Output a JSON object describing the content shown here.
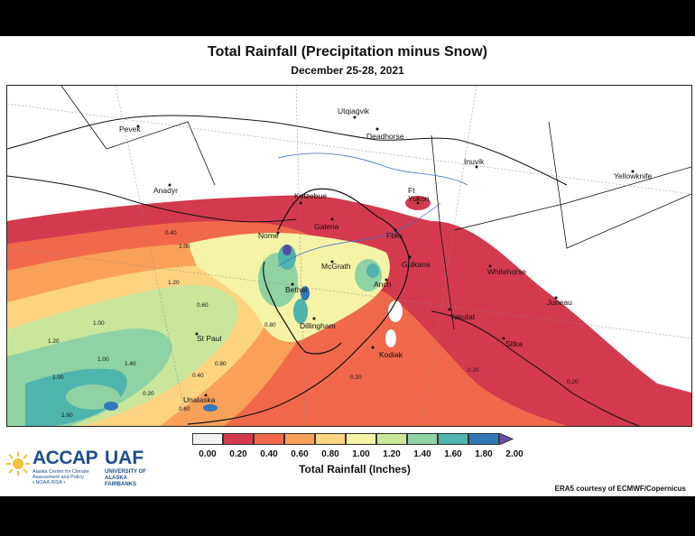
{
  "header": {
    "title": "Total Rainfall (Precipitation minus Snow)",
    "subtitle": "December 25-28, 2021"
  },
  "map": {
    "cities": [
      {
        "key": "pevek",
        "label": "Pevek"
      },
      {
        "key": "utqiagvik",
        "label": "Utqiaġvik"
      },
      {
        "key": "deadhorse",
        "label": "Deadhorse"
      },
      {
        "key": "inuvik",
        "label": "Inuvik"
      },
      {
        "key": "yellowknife",
        "label": "Yellowknife"
      },
      {
        "key": "anadyr",
        "label": "Anadyr"
      },
      {
        "key": "kotzebue",
        "label": "Kotzebue"
      },
      {
        "key": "ft-yukon",
        "label": "Ft\nYukon"
      },
      {
        "key": "galena",
        "label": "Galena"
      },
      {
        "key": "nome",
        "label": "Nome"
      },
      {
        "key": "fbks",
        "label": "Fbks"
      },
      {
        "key": "mcgrath",
        "label": "McGrath"
      },
      {
        "key": "gulkana",
        "label": "Gulkana"
      },
      {
        "key": "whitehorse",
        "label": "Whitehorse"
      },
      {
        "key": "bethel",
        "label": "Bethel"
      },
      {
        "key": "anch",
        "label": "Anch"
      },
      {
        "key": "juneau",
        "label": "Juneau"
      },
      {
        "key": "yakutat",
        "label": "Yakutat"
      },
      {
        "key": "dillingham",
        "label": "Dillingham"
      },
      {
        "key": "st-paul",
        "label": "St Paul"
      },
      {
        "key": "kodiak",
        "label": "Kodiak"
      },
      {
        "key": "sitka",
        "label": "Sitka"
      },
      {
        "key": "unalaska",
        "label": "Unalaska"
      }
    ],
    "contour_labels": [
      "0.40",
      "1.00",
      "1.20",
      "0.60",
      "1.00",
      "1.20",
      "1.00",
      "1.40",
      "0.20",
      "0.60",
      "0.40",
      "0.80",
      "0.20",
      "0.20",
      "0.20",
      "0.80",
      "1.60",
      "1.00"
    ]
  },
  "legend": {
    "title": "Total Rainfall (Inches)",
    "ticks": [
      "0.00",
      "0.20",
      "0.40",
      "0.60",
      "0.80",
      "1.00",
      "1.20",
      "1.40",
      "1.60",
      "1.80",
      "2.00"
    ],
    "colors": [
      "#f2f2f2",
      "#d43a4e",
      "#f0694a",
      "#f9a15a",
      "#fdd482",
      "#f5f3a6",
      "#c9e69b",
      "#8fd2a4",
      "#4fb4ab",
      "#3178b8",
      "#5a4aa3"
    ],
    "overflow_color": "#6a4ca6"
  },
  "logo": {
    "accap": "ACCAP",
    "accap_sub": "Alaska Center for Climate Assessment and Policy",
    "accap_tag": "• NOAA RISA •",
    "uaf": "UAF",
    "uaf_sub": "UNIVERSITY OF ALASKA FAIRBANKS"
  },
  "credit": "ERA5 courtesy of ECMWF/Copernicus"
}
